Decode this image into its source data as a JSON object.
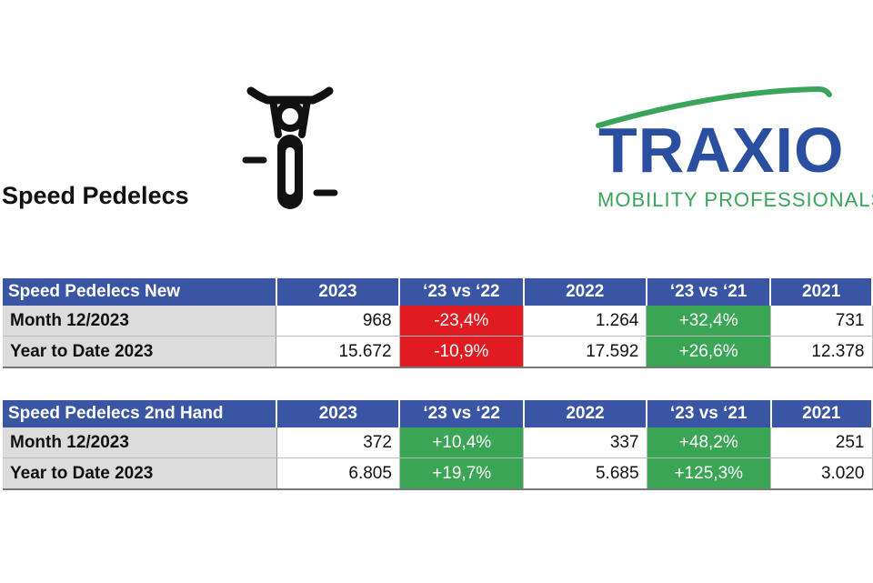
{
  "page_title": "Speed Pedelecs",
  "logo": {
    "word": "TRAXIO",
    "tagline": "MOBILITY PROFESSIONALS",
    "colors": {
      "word": "#2b4fa0",
      "accent": "#3aa55a"
    }
  },
  "colors": {
    "header": "#3a55a4",
    "negative": "#e01b22",
    "positive": "#3aa655",
    "row_label_bg": "#dcdcdc"
  },
  "tables": [
    {
      "headers": [
        "Speed Pedelecs New",
        "2023",
        "‘23 vs ‘22",
        "2022",
        "‘23 vs ‘21",
        "2021"
      ],
      "rows": [
        {
          "label": "Month 12/2023",
          "v2023": "968",
          "vs22": "-23,4%",
          "v2022": "1.264",
          "vs21": "+32,4%",
          "v2021": "731"
        },
        {
          "label": "Year to Date 2023",
          "v2023": "15.672",
          "vs22": "-10,9%",
          "v2022": "17.592",
          "vs21": "+26,6%",
          "v2021": "12.378"
        }
      ]
    },
    {
      "headers": [
        "Speed Pedelecs 2nd Hand",
        "2023",
        "‘23 vs ‘22",
        "2022",
        "‘23 vs ‘21",
        "2021"
      ],
      "rows": [
        {
          "label": "Month 12/2023",
          "v2023": "372",
          "vs22": "+10,4%",
          "v2022": "337",
          "vs21": "+48,2%",
          "v2021": "251"
        },
        {
          "label": "Year to Date 2023",
          "v2023": "6.805",
          "vs22": "+19,7%",
          "v2022": "5.685",
          "vs21": "+125,3%",
          "v2021": "3.020"
        }
      ]
    }
  ]
}
